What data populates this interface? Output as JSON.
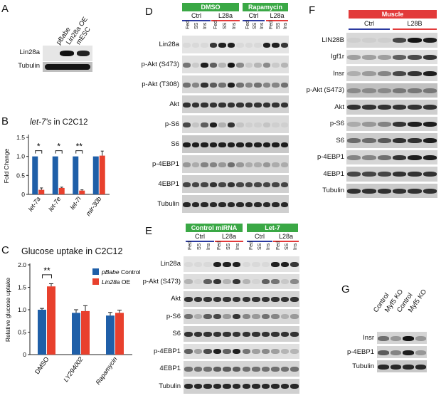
{
  "colors": {
    "blue": "#1f5fa8",
    "red": "#e8402d",
    "green": "#3aa845",
    "redhdr": "#e23a3a",
    "navy": "#2b3aa0"
  },
  "panelA": {
    "label": "A",
    "cols": [
      "pBabe",
      "Lin28a OE",
      "mESC"
    ],
    "rows": [
      "Lin28a",
      "Tubulin"
    ]
  },
  "panelB": {
    "label": "B",
    "title_prefix": "let-7's",
    "title_suffix": " in C2C12",
    "sig": [
      "*",
      "*",
      "**"
    ]
  },
  "panelC": {
    "label": "C",
    "title": "Glucose uptake in C2C12",
    "sig": "**",
    "legend": [
      {
        "name_italic": "pBabe",
        "name_rest": " Control"
      },
      {
        "name_italic": "Lin28a",
        "name_rest": " OE"
      }
    ]
  },
  "panelD": {
    "label": "D",
    "hdr1": "DMSO",
    "hdr2": "Rapamycin",
    "groups": [
      "Ctrl",
      "L28a",
      "Ctrl",
      "L28a"
    ],
    "cols": [
      "Fed",
      "SS",
      "Ins",
      "Fed",
      "SS",
      "Ins",
      "Fed",
      "SS",
      "Ins",
      "Fed",
      "SS",
      "Ins"
    ],
    "rows": [
      "Lin28a",
      "p-Akt (S473)",
      "p-Akt (T308)",
      "Akt",
      "p-S6",
      "S6",
      "p-4EBP1",
      "4EBP1",
      "Tubulin"
    ]
  },
  "panelE": {
    "label": "E",
    "hdr1": "Control miRNA",
    "hdr2": "Let-7",
    "groups": [
      "Ctrl",
      "L28a",
      "Ctrl",
      "L28a"
    ],
    "cols": [
      "Fed",
      "SS",
      "Ins",
      "Fed",
      "SS",
      "Ins",
      "Fed",
      "SS",
      "Ins",
      "Fed",
      "SS",
      "Ins"
    ],
    "rows": [
      "Lin28a",
      "p-Akt (S473)",
      "Akt",
      "p-S6",
      "S6",
      "p-4EBP1",
      "4EBP1",
      "Tubulin"
    ]
  },
  "panelF": {
    "label": "F",
    "hdr": "Muscle",
    "groups": [
      "Ctrl",
      "L28B"
    ],
    "rows": [
      "LIN28B",
      "Igf1r",
      "Insr",
      "p-Akt (S473)",
      "Akt",
      "p-S6",
      "S6",
      "p-4EBP1",
      "4EBP1",
      "Tubulin"
    ]
  },
  "panelG": {
    "label": "G",
    "cols": [
      "Control",
      "Myf5 KO",
      "Control",
      "Myf5 KO"
    ],
    "rows": [
      "Insr",
      "p-4EBP1",
      "Tubulin"
    ]
  },
  "chart_data": [
    {
      "type": "bar",
      "title": "let-7's in C2C12",
      "ylabel": "Fold Change",
      "categories": [
        "let-7a",
        "let-7e",
        "let-7i",
        "mir-30b"
      ],
      "ylim": [
        0,
        1.5
      ],
      "yticks": [
        "0",
        "0.5",
        "1.0",
        "1.5"
      ],
      "series": [
        {
          "values": [
            1.0,
            1.0,
            1.0,
            1.0
          ],
          "errors": [
            0.0,
            0.0,
            0.0,
            0.0
          ]
        },
        {
          "values": [
            0.12,
            0.17,
            0.1,
            1.02
          ],
          "errors": [
            0.05,
            0.02,
            0.02,
            0.12
          ]
        }
      ]
    },
    {
      "type": "bar",
      "title": "Glucose uptake in C2C12",
      "ylabel": "Relative glucose uptake",
      "categories": [
        "DMSO",
        "LY294002",
        "Rapamycin"
      ],
      "ylim": [
        0,
        2.0
      ],
      "yticks": [
        "0",
        "0.5",
        "1.0",
        "1.5",
        "2.0"
      ],
      "series": [
        {
          "name": "pBabe Control",
          "values": [
            1.0,
            0.93,
            0.87
          ],
          "errors": [
            0.03,
            0.07,
            0.07
          ]
        },
        {
          "name": "Lin28a OE",
          "values": [
            1.52,
            0.97,
            0.93
          ],
          "errors": [
            0.06,
            0.12,
            0.06
          ]
        }
      ]
    }
  ]
}
